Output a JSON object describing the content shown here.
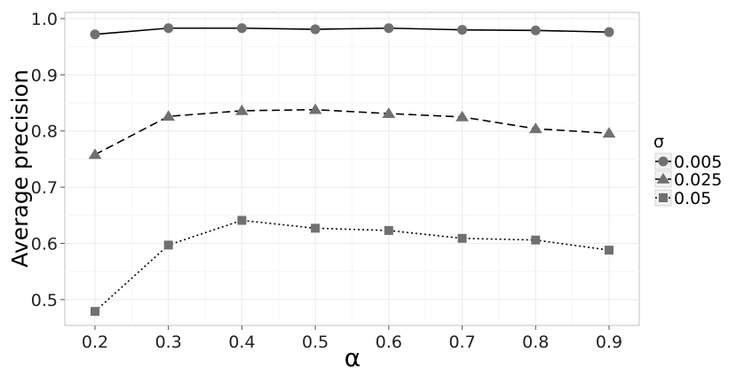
{
  "chart_data": {
    "type": "line",
    "xlabel": "α",
    "ylabel": "Average precision",
    "x": [
      0.2,
      0.3,
      0.4,
      0.5,
      0.6,
      0.7,
      0.8,
      0.9
    ],
    "x_tick_labels": [
      "0.2",
      "0.3",
      "0.4",
      "0.5",
      "0.6",
      "0.7",
      "0.8",
      "0.9"
    ],
    "xlim": [
      0.1589,
      0.9411
    ],
    "y_ticks": [
      0.5,
      0.6,
      0.7,
      0.8,
      0.9,
      1.0
    ],
    "y_tick_labels": [
      "0.5",
      "0.6",
      "0.7",
      "0.8",
      "0.9",
      "1.0"
    ],
    "ylim": [
      0.454,
      1.011
    ],
    "grid": true,
    "legend": {
      "title": "σ",
      "position": "right"
    },
    "series": [
      {
        "name": "0.005",
        "marker": "circle",
        "dash": "solid",
        "values": [
          0.972,
          0.983,
          0.983,
          0.981,
          0.983,
          0.98,
          0.979,
          0.976
        ]
      },
      {
        "name": "0.025",
        "marker": "triangle",
        "dash": "dashed",
        "values": [
          0.758,
          0.826,
          0.836,
          0.838,
          0.831,
          0.825,
          0.804,
          0.796
        ]
      },
      {
        "name": "0.05",
        "marker": "square",
        "dash": "dotted",
        "values": [
          0.479,
          0.597,
          0.641,
          0.627,
          0.623,
          0.609,
          0.606,
          0.588
        ]
      }
    ],
    "colors": {
      "line": "#000000",
      "marker": "#707070",
      "panel_background": "#ffffff",
      "grid_major": "#ebebeb",
      "grid_minor": "#f6f6f6",
      "panel_border": "#c0c0c0"
    }
  }
}
